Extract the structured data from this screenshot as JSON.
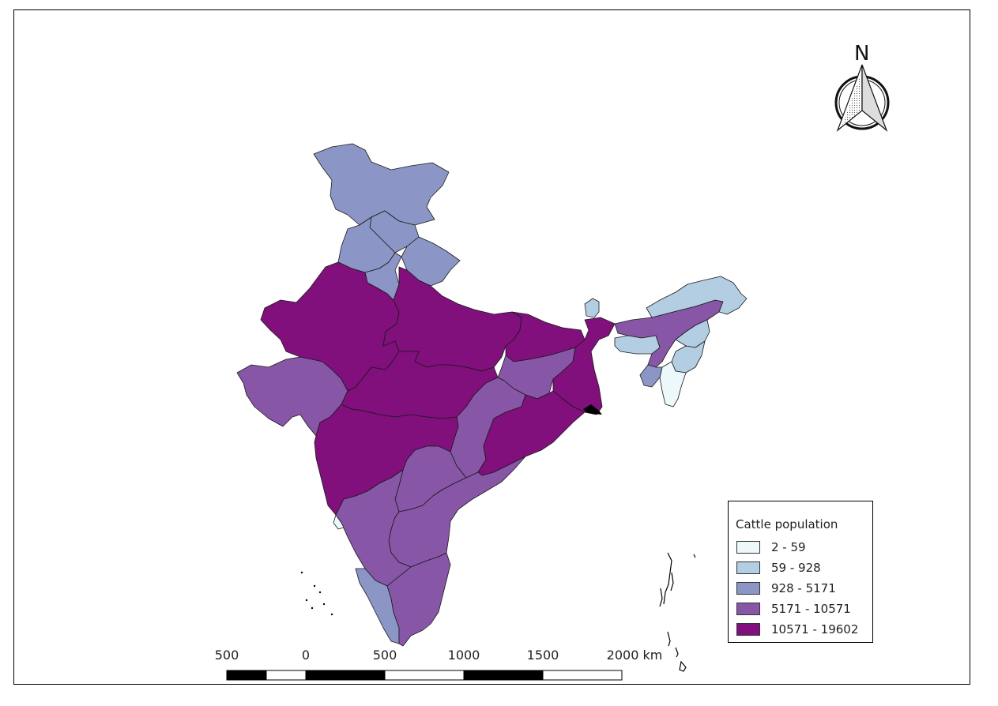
{
  "legend": {
    "title": "Cattle population",
    "classes": [
      {
        "label": "2 - 59",
        "color": "#edf8fb"
      },
      {
        "label": "59 - 928",
        "color": "#b3cde3"
      },
      {
        "label": "928 - 5171",
        "color": "#8c96c6"
      },
      {
        "label": "5171 - 10571",
        "color": "#8856a7"
      },
      {
        "label": "10571 - 19602",
        "color": "#810f7c"
      }
    ]
  },
  "north_arrow": {
    "letter": "N"
  },
  "scale_bar": {
    "labels": [
      "500",
      "0",
      "500",
      "1000",
      "1500",
      "2000 km"
    ]
  },
  "regions": [
    {
      "name": "Jammu and Kashmir",
      "class": 2
    },
    {
      "name": "Himachal Pradesh",
      "class": 2
    },
    {
      "name": "Punjab",
      "class": 2
    },
    {
      "name": "Uttarakhand",
      "class": 2
    },
    {
      "name": "Haryana",
      "class": 2
    },
    {
      "name": "Rajasthan",
      "class": 4
    },
    {
      "name": "Uttar Pradesh",
      "class": 4
    },
    {
      "name": "Bihar",
      "class": 4
    },
    {
      "name": "Gujarat",
      "class": 3
    },
    {
      "name": "Madhya Pradesh",
      "class": 4
    },
    {
      "name": "Jharkhand",
      "class": 3
    },
    {
      "name": "West Bengal",
      "class": 4
    },
    {
      "name": "Chhattisgarh",
      "class": 3
    },
    {
      "name": "Odisha",
      "class": 4
    },
    {
      "name": "Maharashtra",
      "class": 4
    },
    {
      "name": "Telangana",
      "class": 3
    },
    {
      "name": "Andhra Pradesh",
      "class": 3
    },
    {
      "name": "Karnataka",
      "class": 3
    },
    {
      "name": "Goa",
      "class": 0
    },
    {
      "name": "Kerala",
      "class": 2
    },
    {
      "name": "Tamil Nadu",
      "class": 3
    },
    {
      "name": "Sikkim",
      "class": 1
    },
    {
      "name": "Assam",
      "class": 3
    },
    {
      "name": "Arunachal Pradesh",
      "class": 1
    },
    {
      "name": "Meghalaya",
      "class": 1
    },
    {
      "name": "Nagaland",
      "class": 1
    },
    {
      "name": "Manipur",
      "class": 1
    },
    {
      "name": "Mizoram",
      "class": 0
    },
    {
      "name": "Tripura",
      "class": 2
    }
  ]
}
